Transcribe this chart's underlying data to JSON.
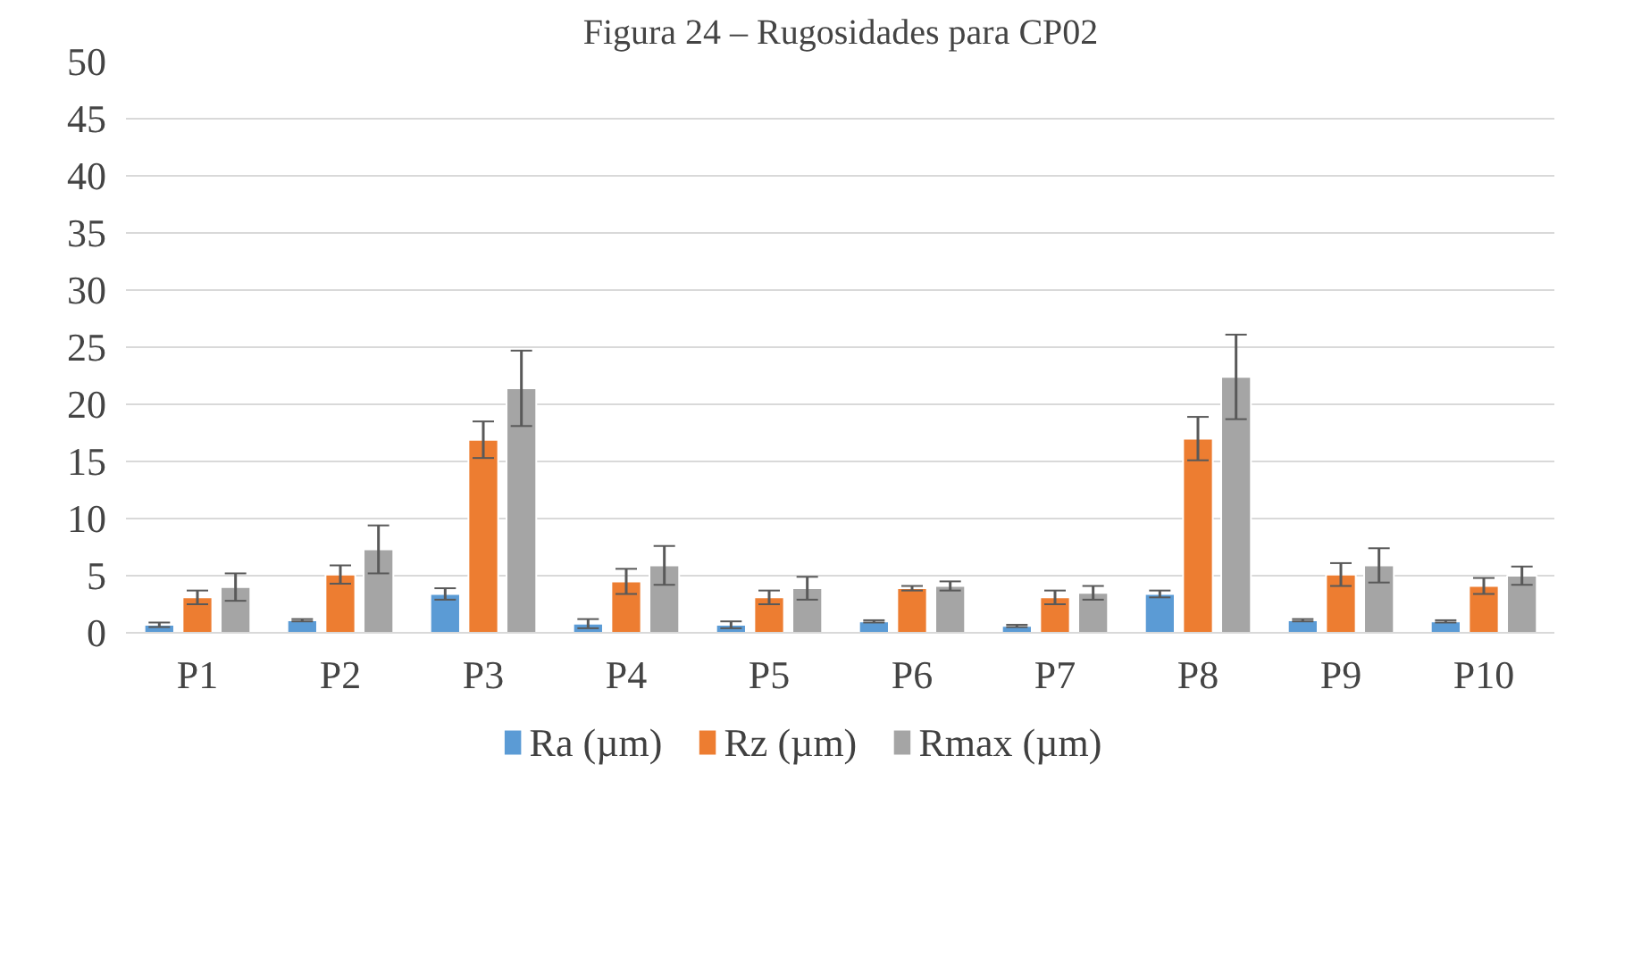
{
  "chart_data": {
    "type": "bar",
    "title": "Figura 24 – Rugosidades para CP02",
    "categories": [
      "P1",
      "P2",
      "P3",
      "P4",
      "P5",
      "P6",
      "P7",
      "P8",
      "P9",
      "P10"
    ],
    "series": [
      {
        "name": "Ra (µm)",
        "color": "#5b9bd5",
        "values": [
          0.7,
          1.1,
          3.4,
          0.8,
          0.7,
          1.0,
          0.6,
          3.4,
          1.1,
          1.0
        ],
        "errors": [
          0.2,
          0.1,
          0.5,
          0.4,
          0.3,
          0.1,
          0.1,
          0.3,
          0.1,
          0.1
        ]
      },
      {
        "name": "Rz (µm)",
        "color": "#ed7d31",
        "values": [
          3.1,
          5.1,
          16.9,
          4.5,
          3.1,
          3.9,
          3.1,
          17.0,
          5.1,
          4.1
        ],
        "errors": [
          0.6,
          0.8,
          1.6,
          1.1,
          0.6,
          0.2,
          0.6,
          1.9,
          1.0,
          0.7
        ]
      },
      {
        "name": "Rmax (µm)",
        "color": "#a5a5a5",
        "values": [
          4.0,
          7.3,
          21.4,
          5.9,
          3.9,
          4.1,
          3.5,
          22.4,
          5.9,
          5.0
        ],
        "errors": [
          1.2,
          2.1,
          3.3,
          1.7,
          1.0,
          0.4,
          0.6,
          3.7,
          1.5,
          0.8
        ]
      }
    ],
    "ylim": [
      0,
      50
    ],
    "yticks": [
      0,
      5,
      10,
      15,
      20,
      25,
      30,
      35,
      40,
      45,
      50
    ],
    "grid": "y",
    "legend": "bottom"
  }
}
